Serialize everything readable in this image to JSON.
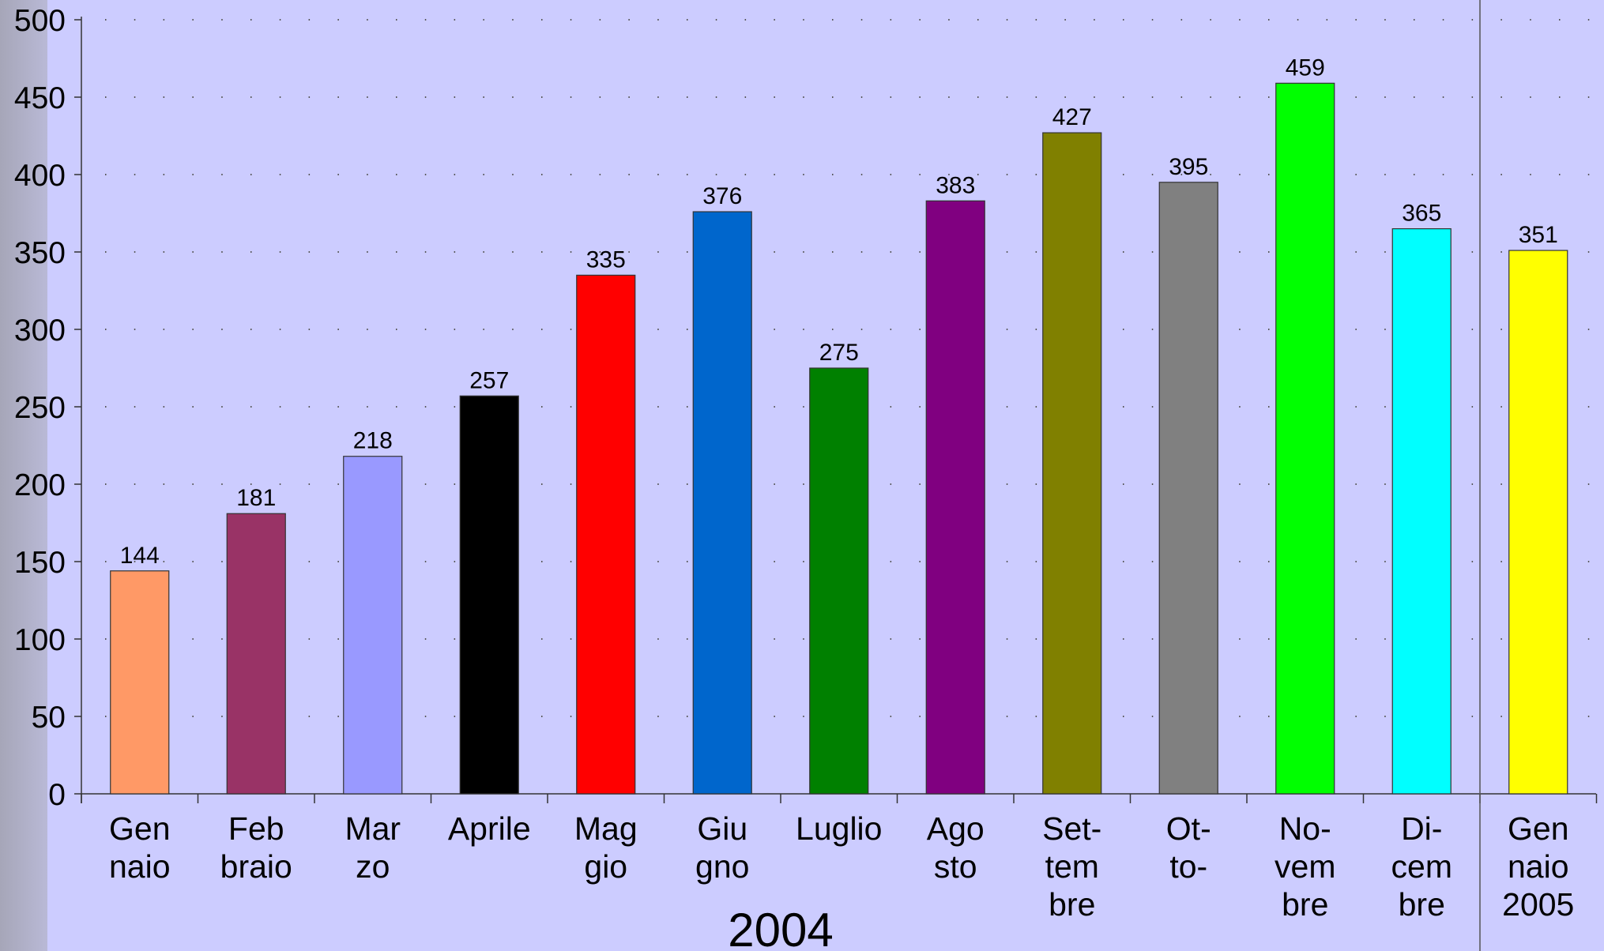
{
  "chart_data": {
    "type": "bar",
    "categories": [
      [
        "Gen",
        "naio"
      ],
      [
        "Feb",
        "braio"
      ],
      [
        "Mar",
        "zo"
      ],
      [
        "Aprile"
      ],
      [
        "Mag",
        "gio"
      ],
      [
        "Giu",
        "gno"
      ],
      [
        "Luglio"
      ],
      [
        "Ago",
        "sto"
      ],
      [
        "Set-",
        "tem",
        "bre"
      ],
      [
        "Ot-",
        "to-"
      ],
      [
        "No-",
        "vem",
        "bre"
      ],
      [
        "Di-",
        "cem",
        "bre"
      ],
      [
        "Gen",
        "naio",
        "2005"
      ]
    ],
    "values": [
      144,
      181,
      218,
      257,
      335,
      376,
      275,
      383,
      427,
      395,
      459,
      365,
      351
    ],
    "colors": [
      "#ff9966",
      "#993366",
      "#9999ff",
      "#000000",
      "#ff0000",
      "#0066cc",
      "#008000",
      "#800080",
      "#808000",
      "#808080",
      "#00ff00",
      "#00ffff",
      "#ffff00"
    ],
    "group_label": "2004",
    "ylim": [
      0,
      500
    ],
    "yticks": [
      0,
      50,
      100,
      150,
      200,
      250,
      300,
      350,
      400,
      450,
      500
    ],
    "grid": "dotted",
    "data_labels": true
  }
}
